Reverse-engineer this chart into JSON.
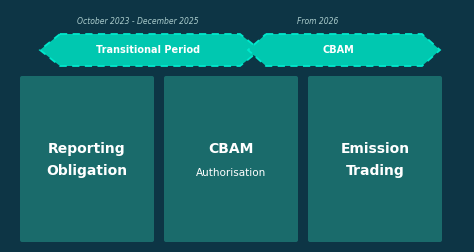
{
  "bg_color": "#0d3545",
  "box_color": "#1a6b6b",
  "arrow_fill": "#00c8b0",
  "arrow_border": "#00e8cc",
  "text_white": "#ffffff",
  "text_label": "#aacccc",
  "label1": "October 2023 - December 2025",
  "label2": "From 2026",
  "arrow1_text": "Transitional Period",
  "arrow2_text": "CBAM",
  "box1_line1": "Reporting",
  "box1_line2": "Obligation",
  "box2_line1": "CBAM",
  "box2_line2": "Authorisation",
  "box3_line1": "Emission",
  "box3_line2": "Trading"
}
